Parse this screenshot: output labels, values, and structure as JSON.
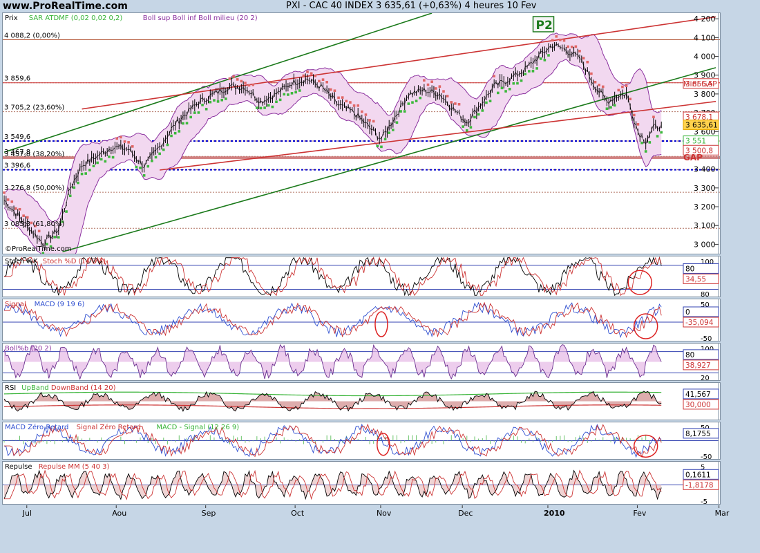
{
  "header": {
    "site": "www.ProRealTime.com",
    "title": "PXI - CAC 40 INDEX     3 635,61 (+0,63%)     4 heures  10 Fev"
  },
  "price_panel": {
    "legend": [
      {
        "text": "Prix",
        "color": "#000000"
      },
      {
        "text": "SAR ATDMF (0,02 0,02 0,2)",
        "color": "#36b336"
      },
      {
        "text": "Boll sup Boll inf Boll milieu (20 2)",
        "color": "#8a2f9e"
      }
    ],
    "watermark": "©ProRealTime.com",
    "annotations": {
      "p2": "P2",
      "mini_gap": "Mini GAP",
      "gap": "GAP"
    },
    "fib_labels": [
      {
        "text": "4 088,2 (0,00%)",
        "y": 4088.2
      },
      {
        "text": "3 859,6",
        "y": 3859.6
      },
      {
        "text": "3 705,2 (23,60%)",
        "y": 3705.2
      },
      {
        "text": "3 549,6",
        "y": 3549.6
      },
      {
        "text": "3 467,8",
        "y": 3467.8
      },
      {
        "text": "3 457,8 (38,20%)",
        "y": 3457.8
      },
      {
        "text": "3 396,6",
        "y": 3396.6
      },
      {
        "text": "3 276,8 (50,00%)",
        "y": 3276.8
      },
      {
        "text": "3 085,3 (61,80%)",
        "y": 3085.3
      }
    ],
    "price_tags": [
      {
        "text": "3 855,5",
        "y": 3855.5,
        "color": "#cc3333"
      },
      {
        "text": "3 678,1",
        "y": 3678.1,
        "color": "#cc3333"
      },
      {
        "text": "3 635,61",
        "y": 3635.61,
        "color": "#e6a800"
      },
      {
        "text": "3 551",
        "y": 3551,
        "color": "#36b336"
      },
      {
        "text": "3 500,8",
        "y": 3500.8,
        "color": "#cc3333"
      }
    ]
  },
  "panels": [
    {
      "legend": [
        {
          "text": "Stoch %K",
          "color": "#000000"
        },
        {
          "text": "Stoch %D (14 3 3)",
          "color": "#cc3333"
        }
      ],
      "ticks": [
        "100",
        "80",
        "20"
      ],
      "values": [
        "80",
        "34,55"
      ]
    },
    {
      "legend": [
        {
          "text": "Signal",
          "color": "#cc3333"
        },
        {
          "text": "MACD (9 19 6)",
          "color": "#2f4fd0"
        }
      ],
      "ticks": [
        "50",
        "-50"
      ],
      "values": [
        "0",
        "-35,094"
      ]
    },
    {
      "legend": [
        {
          "text": "Boll%b (20 2)",
          "color": "#8a2f9e"
        }
      ],
      "ticks": [
        "100",
        "20"
      ],
      "values": [
        "80",
        "38,927"
      ]
    },
    {
      "legend": [
        {
          "text": "RSI",
          "color": "#000000"
        },
        {
          "text": "UpBand",
          "color": "#36b336"
        },
        {
          "text": "DownBand (14 20)",
          "color": "#cc3333"
        }
      ],
      "ticks": [],
      "values": [
        "41,567",
        "30,000"
      ]
    },
    {
      "legend": [
        {
          "text": "MACD Zéro Retard",
          "color": "#2f4fd0"
        },
        {
          "text": "Signal Zéro Retard",
          "color": "#cc3333"
        },
        {
          "text": "MACD - Signal (12 26 9)",
          "color": "#36b336"
        }
      ],
      "ticks": [
        "50",
        "-50"
      ],
      "values": [
        "8,1755"
      ]
    },
    {
      "legend": [
        {
          "text": "Repulse",
          "color": "#000000"
        },
        {
          "text": "Repulse MM (5 40 3)",
          "color": "#cc3333"
        }
      ],
      "ticks": [
        "5",
        "-5"
      ],
      "values": [
        "0,1611",
        "-1,8178"
      ]
    }
  ],
  "chart_data": {
    "type": "line",
    "title": "PXI - CAC 40 INDEX",
    "ylim": [
      2950,
      4230
    ],
    "y_ticks": [
      "4 200",
      "4 100",
      "4 000",
      "3 900",
      "3 800",
      "3 700",
      "3 600",
      "3 500",
      "3 400",
      "3 300",
      "3 200",
      "3 100",
      "3 000"
    ],
    "x_ticks": [
      {
        "label": "Jul",
        "t": 6
      },
      {
        "label": "Aou",
        "t": 29
      },
      {
        "label": "Sep",
        "t": 52
      },
      {
        "label": "Oct",
        "t": 75
      },
      {
        "label": "Nov",
        "t": 97
      },
      {
        "label": "Dec",
        "t": 118
      },
      {
        "label": "2010",
        "t": 140
      },
      {
        "label": "Fev",
        "t": 163
      },
      {
        "label": "Mar",
        "t": 184
      }
    ],
    "x": [
      0,
      5,
      10,
      14,
      17,
      20,
      24,
      28,
      32,
      36,
      40,
      44,
      47,
      50,
      54,
      58,
      62,
      66,
      70,
      74,
      78,
      82,
      86,
      90,
      94,
      97,
      100,
      104,
      108,
      112,
      116,
      119,
      122,
      126,
      130,
      134,
      138,
      141,
      144,
      148,
      152,
      155,
      158,
      160,
      163,
      165,
      167,
      169
    ],
    "series": [
      {
        "name": "Prix",
        "values": [
          3235,
          3120,
          3005,
          3080,
          3300,
          3420,
          3470,
          3520,
          3505,
          3415,
          3520,
          3640,
          3700,
          3755,
          3800,
          3840,
          3835,
          3760,
          3800,
          3860,
          3880,
          3830,
          3740,
          3700,
          3620,
          3560,
          3660,
          3800,
          3820,
          3800,
          3710,
          3650,
          3730,
          3840,
          3880,
          3930,
          4010,
          4060,
          4040,
          3990,
          3840,
          3760,
          3790,
          3800,
          3600,
          3550,
          3620,
          3635.61
        ]
      }
    ]
  }
}
